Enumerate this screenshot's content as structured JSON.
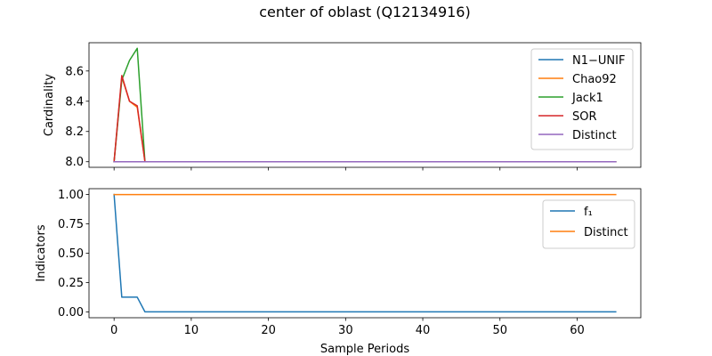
{
  "suptitle": "center of oblast (Q12134916)",
  "colors": {
    "blue": "#1f77b4",
    "orange": "#ff7f0e",
    "green": "#2ca02c",
    "red": "#d62728",
    "purple": "#9467bd"
  },
  "chart_data": [
    {
      "type": "line",
      "ylabel": "Cardinality",
      "xlabel": "",
      "xlim": [
        -3.25,
        68.25
      ],
      "ylim": [
        7.963,
        8.787
      ],
      "xticks": [
        0,
        10,
        20,
        30,
        40,
        50,
        60
      ],
      "xtick_labels_visible": false,
      "yticks": [
        8.0,
        8.2,
        8.4,
        8.6
      ],
      "ytick_labels": [
        "8.0",
        "8.2",
        "8.4",
        "8.6"
      ],
      "legend_position": "upper right",
      "series": [
        {
          "name": "N1−UNIF",
          "color": "#1f77b4",
          "points": [
            [
              0,
              8.0
            ],
            [
              1,
              8.0
            ],
            [
              2,
              8.0
            ],
            [
              3,
              8.0
            ],
            [
              4,
              8.0
            ],
            [
              65,
              8.0
            ]
          ]
        },
        {
          "name": "Chao92",
          "color": "#ff7f0e",
          "points": [
            [
              0,
              8.0
            ],
            [
              1,
              8.56
            ],
            [
              2,
              8.4
            ],
            [
              3,
              8.36
            ],
            [
              4,
              8.0
            ],
            [
              65,
              8.0
            ]
          ]
        },
        {
          "name": "Jack1",
          "color": "#2ca02c",
          "points": [
            [
              0,
              8.0
            ],
            [
              1,
              8.54
            ],
            [
              2,
              8.67
            ],
            [
              3,
              8.75
            ],
            [
              4,
              8.0
            ],
            [
              65,
              8.0
            ]
          ]
        },
        {
          "name": "SOR",
          "color": "#d62728",
          "points": [
            [
              0,
              8.0
            ],
            [
              1,
              8.57
            ],
            [
              2,
              8.4
            ],
            [
              3,
              8.37
            ],
            [
              4,
              8.0
            ],
            [
              65,
              8.0
            ]
          ]
        },
        {
          "name": "Distinct",
          "color": "#9467bd",
          "points": [
            [
              0,
              8.0
            ],
            [
              65,
              8.0
            ]
          ]
        }
      ]
    },
    {
      "type": "line",
      "ylabel": "Indicators",
      "xlabel": "Sample Periods",
      "xlim": [
        -3.25,
        68.25
      ],
      "ylim": [
        -0.05,
        1.05
      ],
      "xticks": [
        0,
        10,
        20,
        30,
        40,
        50,
        60
      ],
      "xtick_labels": [
        "0",
        "10",
        "20",
        "30",
        "40",
        "50",
        "60"
      ],
      "yticks": [
        0.0,
        0.25,
        0.5,
        0.75,
        1.0
      ],
      "ytick_labels": [
        "0.00",
        "0.25",
        "0.50",
        "0.75",
        "1.00"
      ],
      "legend_position": "upper right",
      "series": [
        {
          "name": "f₁",
          "color": "#1f77b4",
          "points": [
            [
              0,
              1.0
            ],
            [
              1,
              0.125
            ],
            [
              2,
              0.125
            ],
            [
              3,
              0.125
            ],
            [
              4,
              0.0
            ],
            [
              65,
              0.0
            ]
          ]
        },
        {
          "name": "Distinct",
          "color": "#ff7f0e",
          "points": [
            [
              0,
              1.0
            ],
            [
              65,
              1.0
            ]
          ]
        }
      ]
    }
  ]
}
